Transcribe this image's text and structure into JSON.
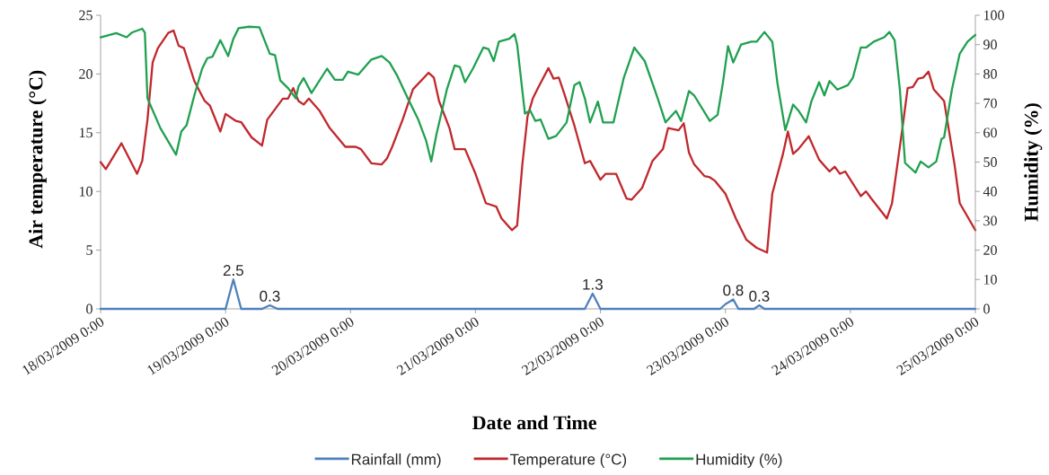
{
  "chart_data": {
    "type": "line",
    "xlabel": "Date and Time",
    "ylabel": "Air temperature (°C)",
    "y2label": "Humidity (%)",
    "xlim": [
      "2009-03-18T00:00",
      "2009-03-25T00:00"
    ],
    "xticks": [
      {
        "value": "2009-03-18T00:00",
        "label": "18/03/2009 0:00"
      },
      {
        "value": "2009-03-19T00:00",
        "label": "19/03/2009 0:00"
      },
      {
        "value": "2009-03-20T00:00",
        "label": "20/03/2009 0:00"
      },
      {
        "value": "2009-03-21T00:00",
        "label": "21/03/2009 0:00"
      },
      {
        "value": "2009-03-22T00:00",
        "label": "22/03/2009 0:00"
      },
      {
        "value": "2009-03-23T00:00",
        "label": "23/03/2009 0:00"
      },
      {
        "value": "2009-03-24T00:00",
        "label": "24/03/2009 0:00"
      },
      {
        "value": "2009-03-25T00:00",
        "label": "25/03/2009 0:00"
      }
    ],
    "ylim": [
      0,
      25
    ],
    "yticks": [
      0,
      5,
      10,
      15,
      20,
      25
    ],
    "y2lim": [
      0,
      100
    ],
    "y2ticks": [
      0,
      10,
      20,
      30,
      40,
      50,
      60,
      70,
      80,
      90,
      100
    ],
    "legend": "bottom",
    "series": [
      {
        "name": "Rainfall (mm)",
        "color": "#4f81bd",
        "x": [
          "2009-03-18T00:00",
          "2009-03-19T00:00",
          "2009-03-19T01:30",
          "2009-03-19T03:00",
          "2009-03-19T07:00",
          "2009-03-19T08:30",
          "2009-03-19T10:00",
          "2009-03-21T21:00",
          "2009-03-21T22:30",
          "2009-03-22T00:00",
          "2009-03-22T23:00",
          "2009-03-23T00:00",
          "2009-03-23T01:30",
          "2009-03-23T02:30",
          "2009-03-23T05:30",
          "2009-03-23T06:30",
          "2009-03-23T07:30",
          "2009-03-25T00:00"
        ],
        "values": [
          0,
          0,
          2.5,
          0,
          0,
          0.3,
          0,
          0,
          1.3,
          0,
          0,
          0.4,
          0.8,
          0,
          0,
          0.3,
          0,
          0
        ],
        "value_labels": [
          null,
          null,
          "2.5",
          null,
          null,
          "0.3",
          null,
          null,
          "1.3",
          null,
          null,
          null,
          "0.8",
          null,
          null,
          "0.3",
          null,
          null
        ]
      },
      {
        "name": "Temperature (°C)",
        "color": "#c0282d",
        "x": [
          "2009-03-18T00:00",
          "2009-03-18T01:00",
          "2009-03-18T04:00",
          "2009-03-18T07:00",
          "2009-03-18T08:00",
          "2009-03-18T09:00",
          "2009-03-18T10:00",
          "2009-03-18T11:00",
          "2009-03-18T13:00",
          "2009-03-18T14:00",
          "2009-03-18T15:00",
          "2009-03-18T16:00",
          "2009-03-18T18:00",
          "2009-03-18T20:00",
          "2009-03-18T21:00",
          "2009-03-18T23:00",
          "2009-03-19T00:00",
          "2009-03-19T02:00",
          "2009-03-19T03:00",
          "2009-03-19T05:00",
          "2009-03-19T07:00",
          "2009-03-19T08:00",
          "2009-03-19T11:00",
          "2009-03-19T12:00",
          "2009-03-19T13:00",
          "2009-03-19T14:00",
          "2009-03-19T15:00",
          "2009-03-19T16:00",
          "2009-03-19T18:00",
          "2009-03-19T20:00",
          "2009-03-19T23:00",
          "2009-03-20T01:00",
          "2009-03-20T02:00",
          "2009-03-20T04:00",
          "2009-03-20T06:00",
          "2009-03-20T07:00",
          "2009-03-20T08:00",
          "2009-03-20T10:00",
          "2009-03-20T12:00",
          "2009-03-20T15:00",
          "2009-03-20T16:00",
          "2009-03-20T17:00",
          "2009-03-20T19:00",
          "2009-03-20T20:00",
          "2009-03-20T22:00",
          "2009-03-21T00:00",
          "2009-03-21T02:00",
          "2009-03-21T04:00",
          "2009-03-21T05:00",
          "2009-03-21T07:00",
          "2009-03-21T08:00",
          "2009-03-21T09:00",
          "2009-03-21T10:00",
          "2009-03-21T11:00",
          "2009-03-21T12:00",
          "2009-03-21T14:00",
          "2009-03-21T15:00",
          "2009-03-21T16:00",
          "2009-03-21T17:00",
          "2009-03-21T19:00",
          "2009-03-21T21:00",
          "2009-03-21T22:00",
          "2009-03-22T00:00",
          "2009-03-22T01:00",
          "2009-03-22T03:00",
          "2009-03-22T05:00",
          "2009-03-22T06:00",
          "2009-03-22T08:00",
          "2009-03-22T10:00",
          "2009-03-22T12:00",
          "2009-03-22T13:00",
          "2009-03-22T15:00",
          "2009-03-22T16:00",
          "2009-03-22T17:00",
          "2009-03-22T18:00",
          "2009-03-22T20:00",
          "2009-03-22T21:00",
          "2009-03-22T22:00",
          "2009-03-23T00:00",
          "2009-03-23T02:00",
          "2009-03-23T04:00",
          "2009-03-23T06:00",
          "2009-03-23T08:00",
          "2009-03-23T09:00",
          "2009-03-23T11:00",
          "2009-03-23T12:00",
          "2009-03-23T13:00",
          "2009-03-23T14:00",
          "2009-03-23T16:00",
          "2009-03-23T18:00",
          "2009-03-23T20:00",
          "2009-03-23T21:00",
          "2009-03-23T22:00",
          "2009-03-23T23:00",
          "2009-03-24T02:00",
          "2009-03-24T03:00",
          "2009-03-24T04:00",
          "2009-03-24T07:00",
          "2009-03-24T08:00",
          "2009-03-24T10:00",
          "2009-03-24T11:00",
          "2009-03-24T12:00",
          "2009-03-24T13:00",
          "2009-03-24T14:00",
          "2009-03-24T15:00",
          "2009-03-24T16:00",
          "2009-03-24T17:00",
          "2009-03-24T18:00",
          "2009-03-24T20:00",
          "2009-03-24T21:00",
          "2009-03-25T00:00"
        ],
        "values": [
          12.5,
          11.9,
          14.1,
          11.5,
          12.6,
          16.1,
          21.0,
          22.2,
          23.5,
          23.7,
          22.4,
          22.2,
          19.4,
          17.7,
          17.3,
          15.1,
          16.6,
          16.0,
          15.9,
          14.6,
          13.9,
          16.1,
          17.9,
          17.9,
          18.8,
          17.7,
          17.4,
          17.9,
          16.9,
          15.4,
          13.8,
          13.8,
          13.6,
          12.4,
          12.3,
          12.8,
          13.8,
          16.1,
          18.7,
          20.1,
          19.7,
          17.7,
          15.4,
          13.6,
          13.6,
          11.5,
          9.0,
          8.7,
          7.7,
          6.7,
          7.1,
          12.3,
          16.4,
          17.9,
          18.8,
          20.5,
          19.6,
          19.7,
          18.4,
          15.6,
          12.4,
          12.6,
          11.0,
          11.5,
          11.5,
          9.4,
          9.3,
          10.3,
          12.6,
          13.6,
          15.4,
          15.2,
          15.8,
          13.3,
          12.3,
          11.3,
          11.2,
          10.9,
          9.8,
          7.7,
          5.9,
          5.2,
          4.8,
          9.8,
          13.1,
          15.1,
          13.2,
          13.6,
          14.7,
          12.7,
          11.7,
          12.1,
          11.5,
          11.7,
          9.6,
          10.0,
          9.4,
          7.7,
          9.0,
          15.4,
          18.8,
          18.9,
          19.6,
          19.7,
          20.2,
          18.7,
          18.2,
          17.7,
          12.3,
          9.0,
          6.7
        ]
      },
      {
        "name": "Humidity (%)",
        "color": "#20a050",
        "axis": "y2",
        "x": [
          "2009-03-18T00:00",
          "2009-03-18T03:00",
          "2009-03-18T05:00",
          "2009-03-18T06:00",
          "2009-03-18T08:00",
          "2009-03-18T08:30",
          "2009-03-18T09:00",
          "2009-03-18T11:30",
          "2009-03-18T14:30",
          "2009-03-18T15:30",
          "2009-03-18T16:30",
          "2009-03-18T18:00",
          "2009-03-18T19:30",
          "2009-03-18T20:30",
          "2009-03-18T21:30",
          "2009-03-18T23:00",
          "2009-03-19T00:30",
          "2009-03-19T01:30",
          "2009-03-19T02:30",
          "2009-03-19T04:30",
          "2009-03-19T06:30",
          "2009-03-19T08:30",
          "2009-03-19T09:30",
          "2009-03-19T10:30",
          "2009-03-19T12:00",
          "2009-03-19T13:30",
          "2009-03-19T14:00",
          "2009-03-19T15:00",
          "2009-03-19T16:30",
          "2009-03-19T19:30",
          "2009-03-19T21:00",
          "2009-03-19T22:30",
          "2009-03-19T23:30",
          "2009-03-20T01:30",
          "2009-03-20T04:00",
          "2009-03-20T06:00",
          "2009-03-20T07:30",
          "2009-03-20T09:00",
          "2009-03-20T11:00",
          "2009-03-20T13:00",
          "2009-03-20T14:30",
          "2009-03-20T15:30",
          "2009-03-20T16:30",
          "2009-03-20T18:30",
          "2009-03-20T20:00",
          "2009-03-20T21:00",
          "2009-03-20T22:00",
          "2009-03-20T23:30",
          "2009-03-21T01:30",
          "2009-03-21T02:30",
          "2009-03-21T03:30",
          "2009-03-21T04:30",
          "2009-03-21T06:30",
          "2009-03-21T07:30",
          "2009-03-21T08:00",
          "2009-03-21T09:30",
          "2009-03-21T10:30",
          "2009-03-21T11:30",
          "2009-03-21T12:30",
          "2009-03-21T14:00",
          "2009-03-21T15:30",
          "2009-03-21T17:30",
          "2009-03-21T19:00",
          "2009-03-21T20:00",
          "2009-03-21T21:00",
          "2009-03-21T22:00",
          "2009-03-21T23:30",
          "2009-03-22T00:30",
          "2009-03-22T02:30",
          "2009-03-22T04:30",
          "2009-03-22T06:30",
          "2009-03-22T08:30",
          "2009-03-22T11:00",
          "2009-03-22T12:30",
          "2009-03-22T14:30",
          "2009-03-22T15:30",
          "2009-03-22T17:00",
          "2009-03-22T18:00",
          "2009-03-22T21:00",
          "2009-03-22T22:30",
          "2009-03-22T23:30",
          "2009-03-23T00:30",
          "2009-03-23T01:30",
          "2009-03-23T03:00",
          "2009-03-23T05:00",
          "2009-03-23T06:00",
          "2009-03-23T07:30",
          "2009-03-23T09:00",
          "2009-03-23T10:00",
          "2009-03-23T11:30",
          "2009-03-23T13:00",
          "2009-03-23T14:00",
          "2009-03-23T15:30",
          "2009-03-23T16:30",
          "2009-03-23T18:00",
          "2009-03-23T19:00",
          "2009-03-23T20:00",
          "2009-03-23T21:30",
          "2009-03-23T23:30",
          "2009-03-24T00:30",
          "2009-03-24T02:00",
          "2009-03-24T03:00",
          "2009-03-24T04:30",
          "2009-03-24T06:30",
          "2009-03-24T07:30",
          "2009-03-24T08:30",
          "2009-03-24T09:30",
          "2009-03-24T10:30",
          "2009-03-24T12:30",
          "2009-03-24T13:30",
          "2009-03-24T15:00",
          "2009-03-24T16:30",
          "2009-03-24T17:30",
          "2009-03-24T18:00",
          "2009-03-24T19:30",
          "2009-03-24T21:00",
          "2009-03-24T22:30",
          "2009-03-25T00:00"
        ],
        "values": [
          92.5,
          93.9,
          92.5,
          94.1,
          95.4,
          94.1,
          71.7,
          61.5,
          52.5,
          60.4,
          62.5,
          72.7,
          81.8,
          85.4,
          85.9,
          91.5,
          86.1,
          92.0,
          95.6,
          96.1,
          95.9,
          86.9,
          86.4,
          77.8,
          75.2,
          71.7,
          75.7,
          78.6,
          73.5,
          81.8,
          78.0,
          78.0,
          80.8,
          79.8,
          84.9,
          86.1,
          83.9,
          79.3,
          71.7,
          64.5,
          57.4,
          50.2,
          59.4,
          74.7,
          82.9,
          82.4,
          77.2,
          81.8,
          89.0,
          88.5,
          84.4,
          91.0,
          92.0,
          93.6,
          90.0,
          66.5,
          67.6,
          64.0,
          64.5,
          57.9,
          58.9,
          63.5,
          76.2,
          77.2,
          71.7,
          63.5,
          70.6,
          63.5,
          63.5,
          78.8,
          89.0,
          84.4,
          71.7,
          63.5,
          67.4,
          64.0,
          74.2,
          72.7,
          64.0,
          66.1,
          76.8,
          89.5,
          83.9,
          90.0,
          91.0,
          91.0,
          94.3,
          91.0,
          76.8,
          60.9,
          69.6,
          67.6,
          63.5,
          70.6,
          77.2,
          72.7,
          77.6,
          74.7,
          76.2,
          78.8,
          89.0,
          89.0,
          91.0,
          92.5,
          94.3,
          91.5,
          74.7,
          49.7,
          46.4,
          50.2,
          48.2,
          50.2,
          57.9,
          58.4,
          74.7,
          86.9,
          91.0,
          93.3
        ]
      }
    ]
  }
}
